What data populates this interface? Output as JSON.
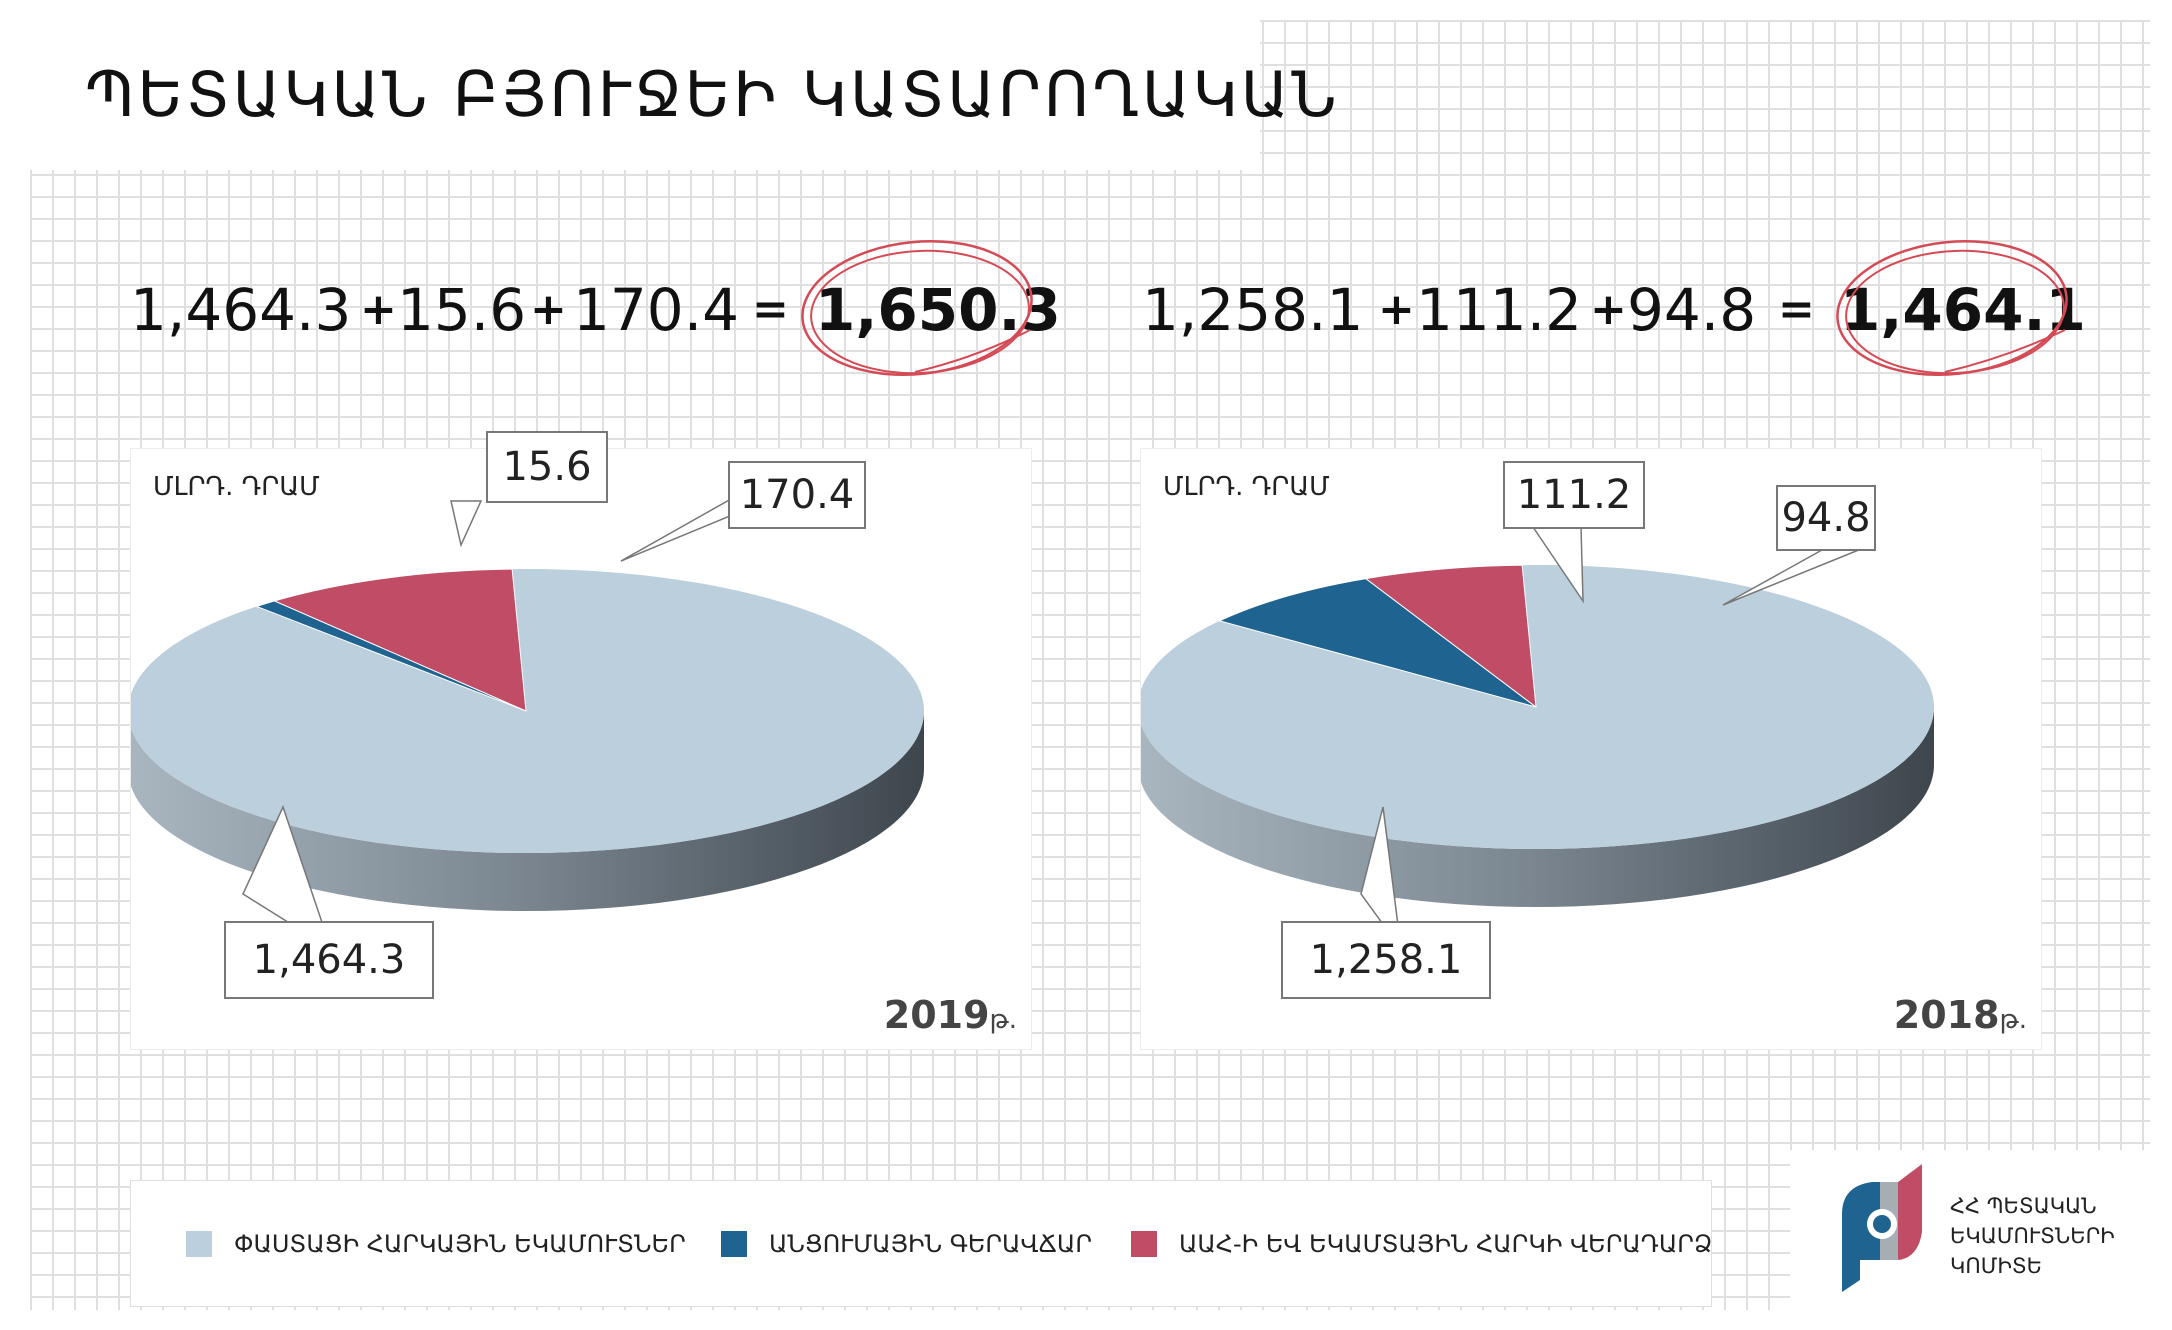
{
  "title": "ՊԵՏԱԿԱՆ ԲՅՈՒՋԵԻ ԿԱՏԱՐՈՂԱԿԱՆ",
  "colors": {
    "property_tax": "#bccfdc",
    "grants": "#1f6491",
    "vat_refund": "#c04c66",
    "circle": "#d44a55"
  },
  "equations": [
    {
      "terms": [
        "1,464.3",
        "15.6",
        "170.4"
      ],
      "plus": "+",
      "equals": "=",
      "total": "1,650.3"
    },
    {
      "terms": [
        "1,258.1",
        "111.2",
        "94.8"
      ],
      "plus": "+",
      "equals": "=",
      "total": "1,464.1"
    }
  ],
  "unit_label": "ՄԼՐԴ. ԴՐԱՄ",
  "chart_data": [
    {
      "type": "pie",
      "year": "2019",
      "year_suffix": "թ.",
      "categories": [
        "ՓԱՍՏԱՑԻ ՀԱՐԿԱՅԻՆ ԵԿԱՄՈՒՏՆԵՐ",
        "ԱՆՑՈՒՄԱՅԻՆ ԳԵՐԱՎՃԱՐ",
        "ԱԱՀ-Ի ԵՎ ԵԿԱՄՏԱՅԻՆ ՀԱՐԿԻ ՎԵՐԱԴԱՐՁ"
      ],
      "values": [
        1464.3,
        15.6,
        170.4
      ],
      "value_labels": [
        "1,464.3",
        "15.6",
        "170.4"
      ]
    },
    {
      "type": "pie",
      "year": "2018",
      "year_suffix": "թ.",
      "categories": [
        "ՓԱՍՏԱՑԻ ՀԱՐԿԱՅԻՆ ԵԿԱՄՈՒՏՆԵՐ",
        "ԱՆՑՈՒՄԱՅԻՆ ԳԵՐԱՎՃԱՐ",
        "ԱԱՀ-Ի ԵՎ ԵԿԱՄՏԱՅԻՆ ՀԱՐԿԻ ՎԵՐԱԴԱՐՁ"
      ],
      "values": [
        1258.1,
        111.2,
        94.8
      ],
      "value_labels": [
        "1,258.1",
        "111.2",
        "94.8"
      ]
    }
  ],
  "legend": [
    {
      "label": "ՓԱՍՏԱՑԻ ՀԱՐԿԱՅԻՆ ԵԿԱՄՈՒՏՆԵՐ",
      "color": "#bccfdc"
    },
    {
      "label": "ԱՆՑՈՒՄԱՅԻՆ ԳԵՐԱՎՃԱՐ",
      "color": "#1f6491"
    },
    {
      "label": "ԱԱՀ-Ի ԵՎ ԵԿԱՄՏԱՅԻՆ ՀԱՐԿԻ ՎԵՐԱԴԱՐՁ",
      "color": "#c04c66"
    }
  ],
  "logo": {
    "line1": "ՀՀ ՊԵՏԱԿԱՆ",
    "line2": "ԵԿԱՄՈՒՏՆԵՐԻ",
    "line3": "ԿՈՄԻՏԵ"
  }
}
